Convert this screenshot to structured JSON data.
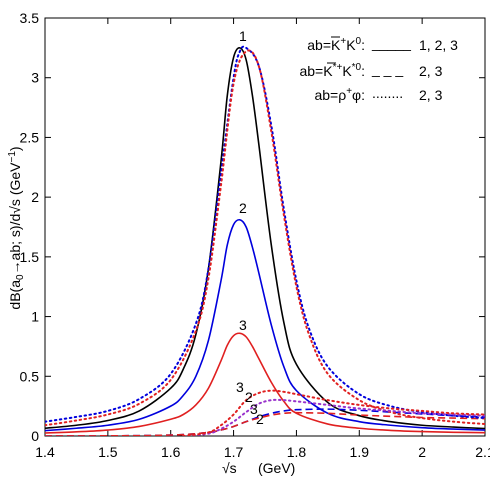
{
  "chart_data": {
    "type": "line",
    "xlim": [
      1.4,
      2.1
    ],
    "ylim": [
      0,
      3.5
    ],
    "x_ticks": [
      "1.4",
      "1.5",
      "1.6",
      "1.7",
      "1.8",
      "1.9",
      "2",
      "2.1"
    ],
    "y_ticks": [
      "0",
      "0.5",
      "1",
      "1.5",
      "2",
      "2.5",
      "3",
      "3.5"
    ],
    "grid": false,
    "colors": {
      "curve1": "#000000",
      "curve2": "#0000dd",
      "curve3": "#e02020",
      "dotted": "#9933cc"
    },
    "legend": [
      {
        "label_pre": "ab=K",
        "sup1": "+",
        "label_mid": "K",
        "sup2": "0",
        "bar2": true,
        "label_post": ":",
        "style": "_____",
        "values": "1, 2, 3"
      },
      {
        "label_pre": "ab=K",
        "sup1": "*+",
        "label_mid": "K",
        "sup2": "*0",
        "bar2": true,
        "label_post": ":",
        "style": "_ _ _",
        "values": "2, 3"
      },
      {
        "label_pre": "ab=",
        "rho": "ρ",
        "sup1": "+",
        "label_mid": "φ",
        "sup2": "",
        "bar2": false,
        "label_post": ":",
        "style": "........",
        "values": "2, 3"
      }
    ],
    "curve_labels": {
      "peak1": "1",
      "peak2": "2",
      "peak3": "3",
      "low_a": "3",
      "low_b": "2",
      "low_c": "3",
      "low_d": "2"
    },
    "series": [
      {
        "id": "KK_1",
        "style": "solid",
        "color_key": "curve1",
        "x": [
          1.4,
          1.45,
          1.5,
          1.55,
          1.6,
          1.62,
          1.64,
          1.66,
          1.68,
          1.69,
          1.7,
          1.71,
          1.72,
          1.73,
          1.74,
          1.76,
          1.78,
          1.8,
          1.85,
          1.9,
          1.95,
          2.0,
          2.05,
          2.1
        ],
        "y": [
          0.065,
          0.09,
          0.13,
          0.21,
          0.4,
          0.56,
          0.85,
          1.4,
          2.3,
          2.85,
          3.17,
          3.25,
          3.15,
          2.85,
          2.45,
          1.6,
          0.95,
          0.6,
          0.28,
          0.17,
          0.12,
          0.09,
          0.075,
          0.062
        ]
      },
      {
        "id": "KK_2",
        "style": "solid",
        "color_key": "curve2",
        "x": [
          1.4,
          1.45,
          1.5,
          1.55,
          1.6,
          1.62,
          1.64,
          1.66,
          1.68,
          1.69,
          1.7,
          1.71,
          1.72,
          1.73,
          1.74,
          1.76,
          1.78,
          1.8,
          1.85,
          1.9,
          1.95,
          2.0,
          2.05,
          2.1
        ],
        "y": [
          0.045,
          0.065,
          0.09,
          0.14,
          0.25,
          0.34,
          0.5,
          0.8,
          1.3,
          1.6,
          1.77,
          1.81,
          1.75,
          1.58,
          1.37,
          0.93,
          0.58,
          0.38,
          0.19,
          0.12,
          0.09,
          0.07,
          0.058,
          0.05
        ]
      },
      {
        "id": "KK_3",
        "style": "solid",
        "color_key": "curve3",
        "x": [
          1.4,
          1.45,
          1.5,
          1.55,
          1.6,
          1.62,
          1.64,
          1.66,
          1.68,
          1.69,
          1.7,
          1.71,
          1.72,
          1.73,
          1.74,
          1.76,
          1.78,
          1.8,
          1.85,
          1.9,
          1.95,
          2.0,
          2.05,
          2.1
        ],
        "y": [
          0.025,
          0.035,
          0.05,
          0.08,
          0.14,
          0.18,
          0.26,
          0.4,
          0.63,
          0.76,
          0.84,
          0.86,
          0.83,
          0.75,
          0.65,
          0.45,
          0.29,
          0.19,
          0.1,
          0.065,
          0.047,
          0.037,
          0.031,
          0.028
        ]
      },
      {
        "id": "KstarKstar_2",
        "style": "dashed",
        "color_key": "curve2",
        "x": [
          1.4,
          1.55,
          1.62,
          1.66,
          1.68,
          1.7,
          1.72,
          1.74,
          1.76,
          1.78,
          1.8,
          1.85,
          1.9,
          1.95,
          2.0,
          2.05,
          2.1
        ],
        "y": [
          0.0,
          0.003,
          0.012,
          0.03,
          0.05,
          0.08,
          0.12,
          0.16,
          0.19,
          0.21,
          0.22,
          0.225,
          0.215,
          0.2,
          0.185,
          0.17,
          0.16
        ]
      },
      {
        "id": "KstarKstar_3",
        "style": "dashed",
        "color_key": "curve3",
        "x": [
          1.4,
          1.55,
          1.62,
          1.66,
          1.68,
          1.7,
          1.72,
          1.74,
          1.76,
          1.78,
          1.8,
          1.85,
          1.9,
          1.95,
          2.0,
          2.05,
          2.1
        ],
        "y": [
          0.0,
          0.003,
          0.012,
          0.03,
          0.05,
          0.08,
          0.12,
          0.15,
          0.175,
          0.19,
          0.195,
          0.19,
          0.175,
          0.165,
          0.155,
          0.15,
          0.145
        ]
      },
      {
        "id": "rhophi_KK_2",
        "style": "dotted",
        "color_key": "curve2",
        "x": [
          1.4,
          1.45,
          1.5,
          1.55,
          1.6,
          1.64,
          1.66,
          1.68,
          1.7,
          1.71,
          1.72,
          1.74,
          1.76,
          1.78,
          1.8,
          1.82,
          1.85,
          1.9,
          1.95,
          2.0,
          2.05,
          2.1
        ],
        "y": [
          0.12,
          0.16,
          0.21,
          0.31,
          0.52,
          0.94,
          1.4,
          2.2,
          3.0,
          3.22,
          3.25,
          3.1,
          2.6,
          1.9,
          1.3,
          0.9,
          0.58,
          0.35,
          0.25,
          0.2,
          0.17,
          0.15
        ]
      },
      {
        "id": "rhophi_KK_3",
        "style": "dotted",
        "color_key": "curve3",
        "x": [
          1.4,
          1.45,
          1.5,
          1.55,
          1.6,
          1.64,
          1.66,
          1.68,
          1.7,
          1.72,
          1.74,
          1.76,
          1.78,
          1.8,
          1.82,
          1.85,
          1.9,
          1.95,
          2.0,
          2.05,
          2.1
        ],
        "y": [
          0.09,
          0.13,
          0.18,
          0.27,
          0.47,
          0.88,
          1.32,
          2.1,
          2.95,
          3.22,
          3.1,
          2.55,
          1.85,
          1.25,
          0.85,
          0.52,
          0.3,
          0.2,
          0.15,
          0.12,
          0.1
        ]
      },
      {
        "id": "rhophi_low_2",
        "style": "dotted",
        "color_key": "dotted",
        "x": [
          1.62,
          1.66,
          1.68,
          1.7,
          1.72,
          1.74,
          1.76,
          1.78,
          1.8,
          1.85,
          1.9,
          1.95,
          2.0,
          2.05,
          2.1
        ],
        "y": [
          0.0,
          0.02,
          0.06,
          0.12,
          0.2,
          0.27,
          0.3,
          0.3,
          0.29,
          0.26,
          0.23,
          0.21,
          0.19,
          0.18,
          0.17
        ]
      },
      {
        "id": "rhophi_low_3",
        "style": "dotted",
        "color_key": "curve3",
        "x": [
          1.62,
          1.66,
          1.68,
          1.7,
          1.72,
          1.74,
          1.76,
          1.78,
          1.8,
          1.85,
          1.9,
          1.95,
          2.0,
          2.05,
          2.1
        ],
        "y": [
          0.0,
          0.03,
          0.09,
          0.18,
          0.3,
          0.36,
          0.38,
          0.37,
          0.35,
          0.3,
          0.26,
          0.23,
          0.21,
          0.19,
          0.18
        ]
      }
    ]
  }
}
